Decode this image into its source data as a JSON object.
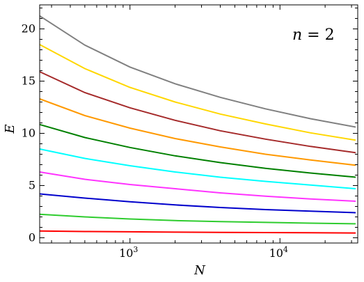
{
  "chart_data": {
    "type": "line",
    "xlabel": "N",
    "ylabel": "E",
    "xscale": "log",
    "xlim": [
      250,
      33000
    ],
    "ylim": [
      -0.5,
      22.3
    ],
    "annotation": {
      "var": "n",
      "rest": " = 2"
    },
    "x_ticks": [
      {
        "value": 1000,
        "base": "10",
        "exp": "3"
      },
      {
        "value": 10000,
        "base": "10",
        "exp": "4"
      }
    ],
    "y_ticks": [
      {
        "value": 0,
        "label": "0"
      },
      {
        "value": 5,
        "label": "5"
      },
      {
        "value": 10,
        "label": "10"
      },
      {
        "value": 15,
        "label": "15"
      },
      {
        "value": 20,
        "label": "20"
      }
    ],
    "x": [
      250,
      500,
      1000,
      2000,
      4000,
      8000,
      16000,
      32000
    ],
    "series": [
      {
        "color": "#ff0000",
        "values": [
          0.65,
          0.6,
          0.57,
          0.54,
          0.52,
          0.5,
          0.48,
          0.46
        ]
      },
      {
        "color": "#2ecc2e",
        "values": [
          2.25,
          2.0,
          1.8,
          1.65,
          1.55,
          1.47,
          1.4,
          1.34
        ]
      },
      {
        "color": "#0000cc",
        "values": [
          4.2,
          3.8,
          3.45,
          3.15,
          2.9,
          2.7,
          2.55,
          2.4
        ]
      },
      {
        "color": "#ff33ff",
        "values": [
          6.3,
          5.6,
          5.1,
          4.7,
          4.3,
          3.98,
          3.72,
          3.5
        ]
      },
      {
        "color": "#00ffff",
        "values": [
          8.5,
          7.6,
          6.9,
          6.3,
          5.8,
          5.4,
          5.05,
          4.7
        ]
      },
      {
        "color": "#008000",
        "values": [
          10.85,
          9.6,
          8.65,
          7.85,
          7.2,
          6.65,
          6.2,
          5.8
        ]
      },
      {
        "color": "#ff9900",
        "values": [
          13.3,
          11.7,
          10.5,
          9.5,
          8.7,
          8.0,
          7.45,
          6.95
        ]
      },
      {
        "color": "#a52a2a",
        "values": [
          15.9,
          13.9,
          12.45,
          11.25,
          10.25,
          9.45,
          8.75,
          8.15
        ]
      },
      {
        "color": "#ffd700",
        "values": [
          18.5,
          16.2,
          14.4,
          13.0,
          11.85,
          10.9,
          10.05,
          9.35
        ]
      },
      {
        "color": "#808080",
        "values": [
          21.25,
          18.45,
          16.35,
          14.75,
          13.45,
          12.35,
          11.4,
          10.6
        ]
      }
    ]
  }
}
